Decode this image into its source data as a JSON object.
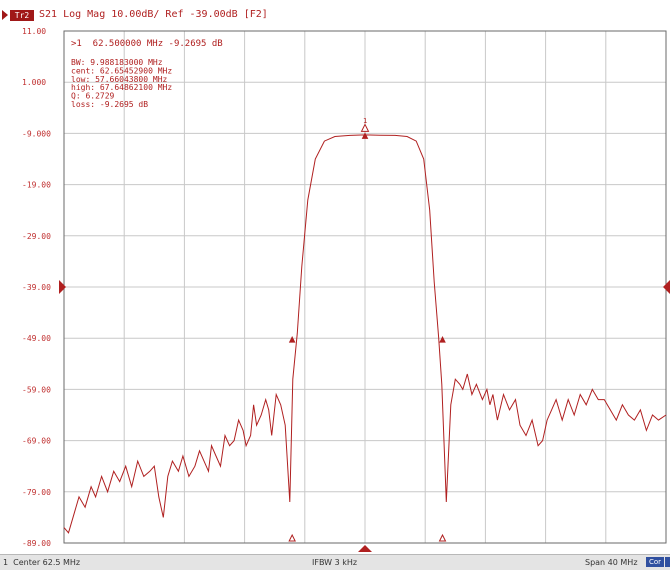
{
  "header": {
    "trace_badge": "Tr2",
    "trace_label": "S21 Log Mag 10.00dB/ Ref -39.00dB [F2]"
  },
  "colors": {
    "trace": "#b02020",
    "grid": "#c8c8c8",
    "frame": "#6a6a6a",
    "background": "#ffffff",
    "tick_text": "#c03030"
  },
  "marker_readout": {
    "marker_line": ">1  62.500000 MHz -9.2695 dB",
    "lines": [
      "  BW:  9.988183000 MHz",
      "cent:  62.65452900 MHz",
      " low:  57.66043800 MHz",
      "high:  67.64862100 MHz",
      "   Q:  6.2729",
      "loss: -9.2695 dB"
    ]
  },
  "status": {
    "center": "1  Center 62.5 MHz",
    "ifbw": "IFBW 3 kHz",
    "span": "Span 40 MHz",
    "cor": "Cor"
  },
  "chart_data": {
    "type": "line",
    "x_unit": "MHz",
    "y_unit": "dB",
    "xlim": [
      42.5,
      82.5
    ],
    "ylim": [
      -89,
      11
    ],
    "yticks": [
      11.0,
      1.0,
      -9.0,
      -19.0,
      -29.0,
      -39.0,
      -49.0,
      -59.0,
      -69.0,
      -79.0,
      -89.0
    ],
    "ytick_labels": [
      "11.00",
      "1.000",
      "-9.000",
      "-19.00",
      "-29.00",
      "-39.00",
      "-49.00",
      "-59.00",
      "-69.00",
      "-79.00",
      "-89.00"
    ],
    "x_divisions": 10,
    "grid": true,
    "reference_level_db": -39.0,
    "series": [
      {
        "x": [
          42.5,
          42.8,
          43.2,
          43.5,
          43.9,
          44.3,
          44.6,
          45.0,
          45.4,
          45.8,
          46.2,
          46.6,
          47.0,
          47.4,
          47.8,
          48.2,
          48.5,
          48.8,
          49.1,
          49.4,
          49.7,
          50.1,
          50.4,
          50.8,
          51.2,
          51.5,
          51.8,
          52.1,
          52.3,
          52.6,
          52.9,
          53.2,
          53.5,
          53.8,
          54.1,
          54.4,
          54.6,
          54.9,
          55.1,
          55.3,
          55.6,
          55.9,
          56.1,
          56.3,
          56.6,
          56.9,
          57.2,
          57.5,
          57.7,
          58.0,
          58.3,
          58.7,
          59.2,
          59.8,
          60.5,
          61.5,
          62.5,
          63.5,
          64.5,
          65.3,
          65.9,
          66.4,
          66.8,
          67.1,
          67.4,
          67.6,
          67.9,
          68.2,
          68.5,
          68.8,
          69.0,
          69.3,
          69.6,
          69.9,
          70.3,
          70.6,
          70.8,
          71.0,
          71.3,
          71.7,
          72.1,
          72.5,
          72.8,
          73.2,
          73.6,
          74.0,
          74.3,
          74.6,
          74.9,
          75.2,
          75.6,
          76.0,
          76.4,
          76.8,
          77.2,
          77.6,
          78.0,
          78.4,
          78.8,
          79.2,
          79.6,
          80.0,
          80.4,
          80.8,
          81.2,
          81.6,
          82.0,
          82.5
        ],
        "y": [
          -86,
          -87,
          -83,
          -80,
          -82,
          -78,
          -80,
          -76,
          -79,
          -75,
          -77,
          -74,
          -78,
          -73,
          -76,
          -75,
          -74,
          -80,
          -84,
          -76,
          -73,
          -75,
          -72,
          -76,
          -74,
          -71,
          -73,
          -75,
          -70,
          -72,
          -74,
          -68,
          -70,
          -69,
          -65,
          -67,
          -70,
          -68,
          -62,
          -66,
          -64,
          -61,
          -63,
          -68,
          -60,
          -62,
          -66,
          -81,
          -57,
          -48,
          -35,
          -22,
          -14,
          -10.5,
          -9.6,
          -9.4,
          -9.3,
          -9.35,
          -9.4,
          -9.6,
          -10.5,
          -14,
          -24,
          -38,
          -49,
          -58,
          -81,
          -62,
          -57,
          -58,
          -59,
          -56,
          -60,
          -58,
          -61,
          -59,
          -62,
          -60,
          -65,
          -60,
          -63,
          -61,
          -66,
          -68,
          -65,
          -70,
          -69,
          -65,
          -63,
          -61,
          -65,
          -61,
          -64,
          -60,
          -62,
          -59,
          -61,
          -61,
          -63,
          -65,
          -62,
          -64,
          -65,
          -63,
          -67,
          -64,
          -65,
          -64
        ]
      }
    ]
  }
}
